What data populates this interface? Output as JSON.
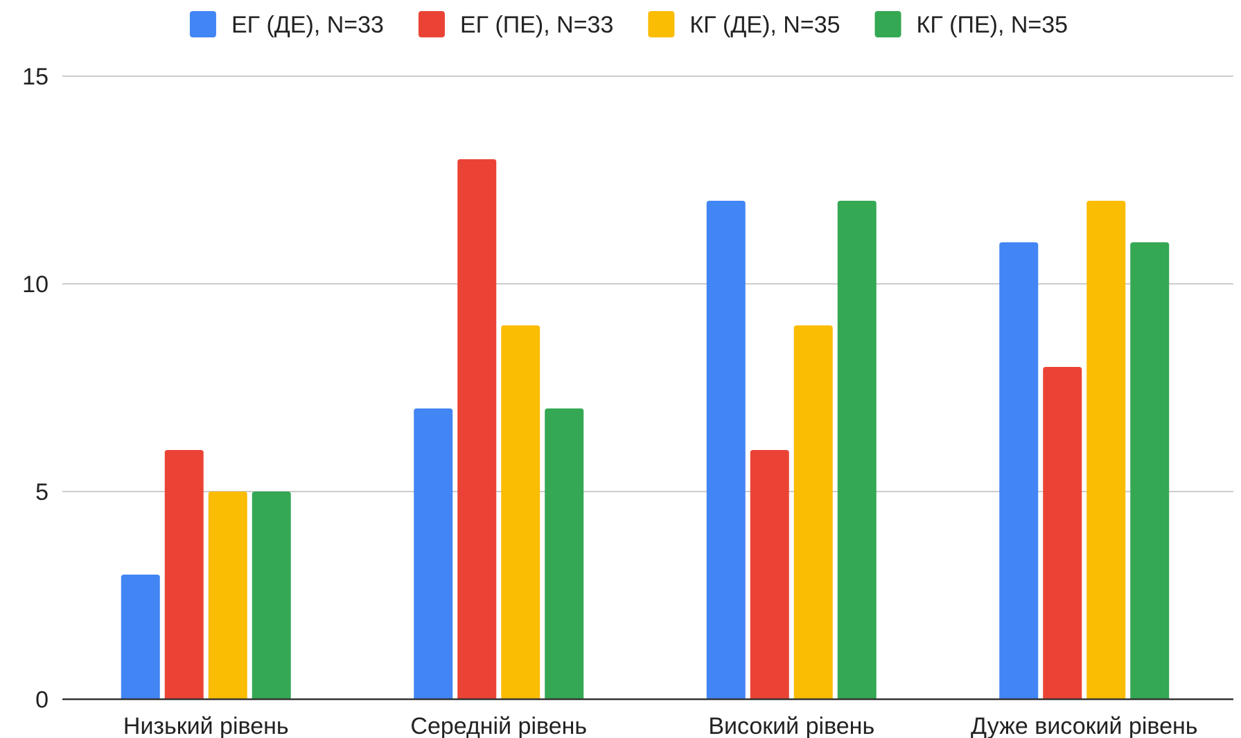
{
  "chart_data": {
    "type": "bar",
    "categories": [
      "Низький рівень",
      "Середній рівень",
      "Високий рівень",
      "Дуже високий рівень"
    ],
    "series": [
      {
        "name": "ЕГ (ДЕ), N=33",
        "color": "#4285f4",
        "values": [
          3,
          7,
          12,
          11
        ]
      },
      {
        "name": "ЕГ (ПЕ), N=33",
        "color": "#ea4335",
        "values": [
          6,
          13,
          6,
          8
        ]
      },
      {
        "name": "КГ (ДЕ), N=35",
        "color": "#fbbc04",
        "values": [
          5,
          9,
          9,
          12
        ]
      },
      {
        "name": "КГ (ПЕ), N=35",
        "color": "#34a853",
        "values": [
          5,
          7,
          12,
          11
        ]
      }
    ],
    "title": "",
    "xlabel": "",
    "ylabel": "",
    "ylim": [
      0,
      15
    ],
    "yticks": [
      "0",
      "5",
      "10",
      "15"
    ],
    "grid": true,
    "legend_position": "top"
  }
}
